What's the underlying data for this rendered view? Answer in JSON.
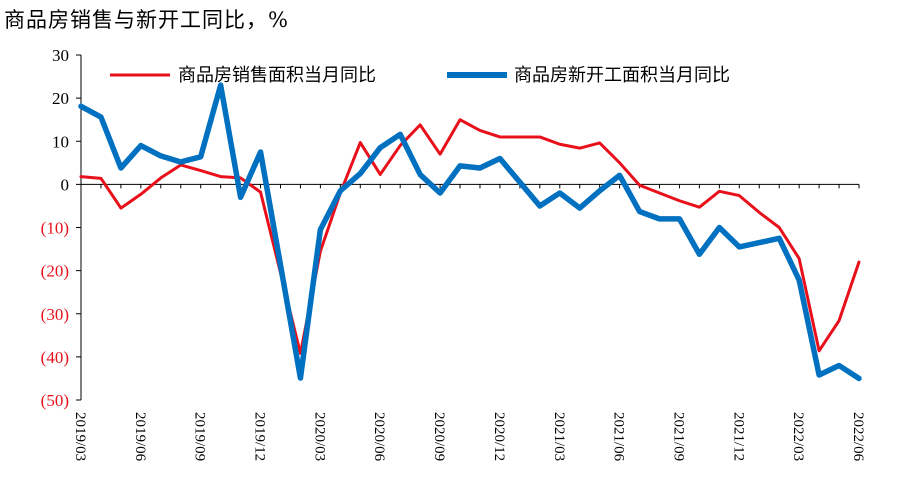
{
  "title": "商品房销售与新开工同比，%",
  "colors": {
    "sales": "#e8101a",
    "starts": "#0070c0",
    "negative_tick": "#e8101a",
    "positive_tick": "#000000",
    "axis": "#000000"
  },
  "chart_data": {
    "type": "line",
    "title": "商品房销售与新开工同比，%",
    "ylim": [
      -50,
      30
    ],
    "y_ticks": [
      30,
      20,
      10,
      0,
      -10,
      -20,
      -30,
      -40,
      -50
    ],
    "y_tick_labels": [
      "30",
      "20",
      "10",
      "0",
      "(10)",
      "(20)",
      "(30)",
      "(40)",
      "(50)"
    ],
    "legend_position": "top",
    "x": [
      "2019/03",
      "2019/04",
      "2019/05",
      "2019/06",
      "2019/07",
      "2019/08",
      "2019/09",
      "2019/10",
      "2019/11",
      "2019/12",
      "2020/01",
      "2020/02",
      "2020/03",
      "2020/04",
      "2020/05",
      "2020/06",
      "2020/07",
      "2020/08",
      "2020/09",
      "2020/10",
      "2020/11",
      "2020/12",
      "2021/01",
      "2021/02",
      "2021/03",
      "2021/04",
      "2021/05",
      "2021/06",
      "2021/07",
      "2021/08",
      "2021/09",
      "2021/10",
      "2021/11",
      "2021/12",
      "2022/01",
      "2022/02",
      "2022/03",
      "2022/04",
      "2022/05",
      "2022/06"
    ],
    "x_tick_labels": [
      "2019/03",
      "2019/06",
      "2019/09",
      "2019/12",
      "2020/03",
      "2020/06",
      "2020/09",
      "2020/12",
      "2021/03",
      "2021/06",
      "2021/09",
      "2021/12",
      "2022/03",
      "2022/06"
    ],
    "x_tick_indices": [
      0,
      3,
      6,
      9,
      12,
      15,
      18,
      21,
      24,
      27,
      30,
      33,
      36,
      39
    ],
    "series": [
      {
        "name": "商品房销售面积当月同比",
        "color": "#e8101a",
        "values": [
          1.8,
          1.4,
          -5.5,
          -2.3,
          1.5,
          4.5,
          3.2,
          1.8,
          1.5,
          -1.8,
          null,
          -39.2,
          -15.5,
          -2.0,
          9.7,
          2.3,
          9.0,
          13.8,
          7.0,
          15.0,
          12.5,
          11.0,
          11.0,
          11.0,
          9.3,
          8.4,
          9.6,
          5.0,
          -0.2,
          -2.0,
          -3.8,
          -5.3,
          -1.6,
          -2.6,
          -6.5,
          -10.0,
          -17.2,
          -38.6,
          -31.6,
          -18.0
        ]
      },
      {
        "name": "商品房新开工面积当月同比",
        "color": "#0070c0",
        "values": [
          18.1,
          15.6,
          3.8,
          9.0,
          6.6,
          5.2,
          6.4,
          23.0,
          -3.0,
          7.5,
          null,
          -44.9,
          -10.5,
          -1.5,
          2.5,
          8.5,
          11.6,
          2.3,
          -2.0,
          4.3,
          3.8,
          6.0,
          null,
          -5.0,
          -2.0,
          -5.5,
          -1.5,
          2.1,
          -6.3,
          -8.0,
          -8.0,
          -16.2,
          -10.0,
          -14.5,
          null,
          -12.5,
          -22.2,
          -44.2,
          -42.0,
          -45.0
        ]
      }
    ]
  }
}
